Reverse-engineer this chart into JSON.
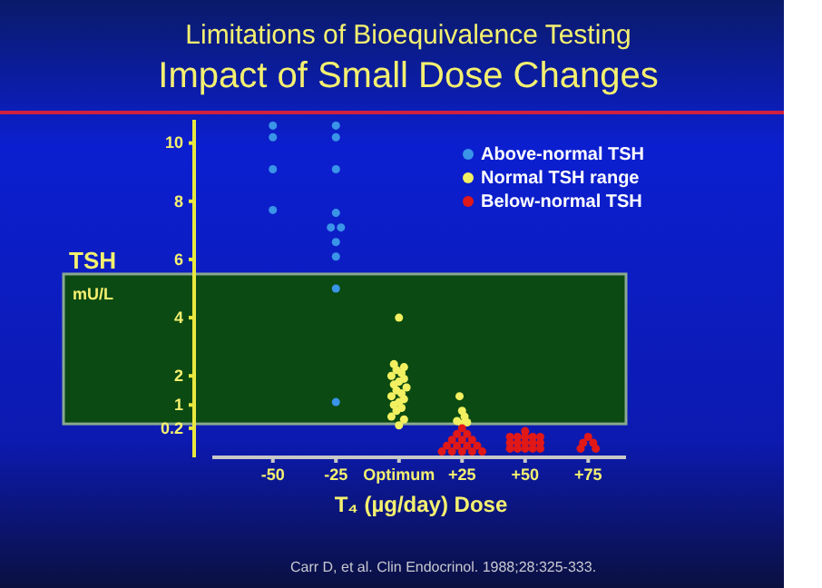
{
  "chart_data": {
    "type": "scatter",
    "title": "Limitations of Bioequivalence Testing",
    "subtitle": "Impact of Small Dose Changes",
    "xlabel": "T₄ (µg/day) Dose",
    "ylabel": "TSH\nmU/L",
    "xlim": [
      -74,
      90
    ],
    "xticks": [
      -50,
      -25,
      {
        "value": 0,
        "label": "Optimum"
      },
      {
        "value": 25,
        "label": "+25"
      },
      {
        "value": 50,
        "label": "+50"
      },
      {
        "value": 75,
        "label": "+75"
      }
    ],
    "ylim": [
      -0.8,
      10.8
    ],
    "yticks": [
      0.2,
      1,
      2,
      4,
      6,
      8,
      10
    ],
    "grid": false,
    "legend": "top right",
    "marker": "circle",
    "bands": [
      {
        "axis": "y",
        "from": 0.35,
        "to": 5.5,
        "color": "#0b4a12"
      }
    ],
    "series": [
      {
        "name": "Above-normal TSH",
        "color": "#3a94e8",
        "x": [
          -50,
          -50,
          -50,
          -50,
          -25,
          -25,
          -25,
          -25,
          -27,
          -23,
          -25,
          -25,
          -25,
          -25
        ],
        "values": [
          10.6,
          10.2,
          9.1,
          7.7,
          10.6,
          10.2,
          9.1,
          7.6,
          7.1,
          7.1,
          6.6,
          6.1,
          5.0,
          1.1
        ]
      },
      {
        "name": "Normal TSH range",
        "color": "#f2f060",
        "x": [
          0,
          -2,
          2,
          -1,
          1,
          -3,
          2,
          0,
          -2,
          3,
          -1,
          1,
          -3,
          2,
          0,
          -2,
          1,
          -1,
          -3,
          2,
          0,
          24,
          25,
          26,
          23,
          27,
          25
        ],
        "values": [
          4.0,
          2.4,
          2.3,
          2.2,
          2.1,
          2.0,
          1.9,
          1.8,
          1.7,
          1.6,
          1.5,
          1.4,
          1.3,
          1.2,
          1.1,
          1.0,
          0.9,
          0.8,
          0.6,
          0.5,
          0.3,
          1.3,
          0.8,
          0.6,
          0.45,
          0.4,
          0.35
        ]
      },
      {
        "name": "Below-normal TSH",
        "color": "#e01818",
        "x": [
          25,
          23,
          27,
          21,
          25,
          29,
          19,
          23,
          27,
          31,
          17,
          21,
          25,
          29,
          33,
          50,
          44,
          47,
          50,
          53,
          56,
          44,
          47,
          50,
          53,
          56,
          44,
          47,
          50,
          53,
          56,
          75,
          73,
          77,
          72,
          78
        ],
        "values": [
          0.2,
          0.0,
          0.0,
          -0.2,
          -0.2,
          -0.2,
          -0.4,
          -0.4,
          -0.4,
          -0.4,
          -0.6,
          -0.6,
          -0.6,
          -0.6,
          -0.6,
          0.1,
          -0.1,
          -0.1,
          -0.1,
          -0.1,
          -0.1,
          -0.3,
          -0.3,
          -0.3,
          -0.3,
          -0.3,
          -0.5,
          -0.5,
          -0.5,
          -0.5,
          -0.5,
          -0.1,
          -0.3,
          -0.3,
          -0.5,
          -0.5
        ]
      }
    ],
    "annotations": [
      "Carr D, et al. Clin Endocrinol. 1988;28:325-333."
    ]
  }
}
